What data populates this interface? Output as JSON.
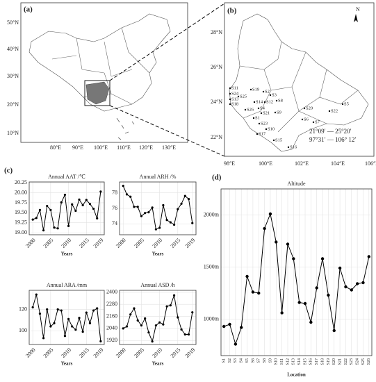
{
  "maps": {
    "a": {
      "label": "(a)",
      "lon_labels": [
        "80°E",
        "90°E",
        "100°E",
        "110°E",
        "120°E",
        "130°E"
      ],
      "lat_labels": [
        "50°N",
        "40°N",
        "30°N",
        "20°N",
        "10°N"
      ]
    },
    "b": {
      "label": "(b)",
      "lon_labels": [
        "98°E",
        "100°E",
        "102°E",
        "104°E",
        "106°E"
      ],
      "lat_labels": [
        "28°N",
        "26°N",
        "24°N",
        "22°N"
      ],
      "north": "N",
      "lat_range": "21°09′ — 25°20′",
      "lon_range": "97°31′ — 106° 12′",
      "stations": [
        "S11",
        "S24",
        "S13",
        "S18",
        "S19",
        "S2",
        "S3",
        "S12",
        "S14",
        "S4",
        "S26",
        "S8",
        "S21",
        "S9",
        "S1",
        "S23",
        "S20",
        "S6",
        "S7",
        "S22",
        "S5",
        "S10",
        "S17",
        "S15",
        "S16",
        "S25"
      ]
    }
  },
  "panel_labels": {
    "c": "(c)",
    "d": "(d)"
  },
  "chart_data": [
    {
      "type": "line",
      "title": "Annual AAT /℃",
      "xlabel": "Years",
      "color": "#000000",
      "grid": true,
      "x": [
        2000,
        2001,
        2002,
        2003,
        2004,
        2005,
        2006,
        2007,
        2008,
        2009,
        2010,
        2011,
        2012,
        2013,
        2014,
        2015,
        2016,
        2017,
        2018,
        2019
      ],
      "values": [
        19.33,
        19.37,
        19.57,
        19.06,
        19.67,
        19.57,
        19.13,
        19.11,
        19.76,
        19.95,
        19.17,
        19.71,
        19.55,
        19.83,
        19.69,
        19.82,
        19.72,
        19.6,
        19.36,
        20.03
      ],
      "xlim": [
        1999,
        2020
      ],
      "xticks": [
        2000,
        2005,
        2010,
        2015,
        2019
      ],
      "ylim": [
        18.95,
        20.27
      ],
      "yticks": [
        {
          "value": 19,
          "label": "19.00"
        },
        19.25,
        {
          "value": 19.5,
          "label": "19.50"
        },
        19.75,
        {
          "value": 20,
          "label": "20.00"
        },
        20.25
      ]
    },
    {
      "type": "line",
      "title": "Annual ARH /%",
      "xlabel": "Years",
      "color": "#000000",
      "grid": true,
      "x": [
        2000,
        2001,
        2002,
        2003,
        2004,
        2005,
        2006,
        2007,
        2008,
        2009,
        2010,
        2011,
        2012,
        2013,
        2014,
        2015,
        2016,
        2017,
        2018,
        2019
      ],
      "values": [
        78.9,
        77.8,
        77.5,
        76.2,
        76.2,
        75.0,
        75.4,
        75.5,
        76.1,
        73.3,
        73.5,
        76.4,
        74.5,
        74.2,
        73.9,
        75.9,
        76.6,
        77.6,
        77.2,
        74.1
      ],
      "xlim": [
        1999,
        2020
      ],
      "xticks": [
        2000,
        2005,
        2010,
        2015,
        2019
      ],
      "ylim": [
        72.6,
        79.4
      ],
      "yticks": [
        74,
        76,
        78
      ]
    },
    {
      "type": "line",
      "title": "Annual ARA /mm",
      "xlabel": "Years",
      "color": "#000000",
      "grid": true,
      "x": [
        2000,
        2001,
        2002,
        2003,
        2004,
        2005,
        2006,
        2007,
        2008,
        2009,
        2010,
        2011,
        2012,
        2013,
        2014,
        2015,
        2016,
        2017,
        2018,
        2019
      ],
      "values": [
        122,
        134,
        116,
        93,
        120,
        104,
        107,
        120,
        119,
        95,
        111,
        104,
        101,
        112,
        99,
        117,
        107,
        119,
        121,
        90
      ],
      "xlim": [
        1999,
        2020
      ],
      "xticks": [
        2000,
        2005,
        2010,
        2015,
        2019
      ],
      "ylim": [
        87,
        138
      ],
      "yticks": [
        100,
        120
      ]
    },
    {
      "type": "line",
      "title": "Annual ASD /h",
      "xlabel": "Years",
      "color": "#000000",
      "grid": true,
      "x": [
        2000,
        2001,
        2002,
        2003,
        2004,
        2005,
        2006,
        2007,
        2008,
        2009,
        2010,
        2011,
        2012,
        2013,
        2014,
        2015,
        2016,
        2017,
        2018,
        2019
      ],
      "values": [
        2040,
        2060,
        2180,
        2240,
        2120,
        2070,
        2140,
        2000,
        1910,
        2070,
        2100,
        2080,
        2260,
        2270,
        2370,
        2150,
        2030,
        1980,
        1980,
        2200
      ],
      "xlim": [
        1999,
        2020
      ],
      "xticks": [
        2000,
        2005,
        2010,
        2015,
        2019
      ],
      "ylim": [
        1880,
        2420
      ],
      "yticks": [
        1920,
        2040,
        2160,
        2280,
        2400
      ]
    },
    {
      "type": "line",
      "title": "Altitude",
      "xlabel": "Location",
      "color": "#000000",
      "grid": true,
      "categories": [
        "S1",
        "S2",
        "S3",
        "S4",
        "S5",
        "S6",
        "S7",
        "S8",
        "S9",
        "S10",
        "S11",
        "S12",
        "S13",
        "S14",
        "S15",
        "S16",
        "S17",
        "S18",
        "S19",
        "S20",
        "S21",
        "S22",
        "S23",
        "S24",
        "S25",
        "S26"
      ],
      "values": [
        930,
        950,
        760,
        920,
        1410,
        1260,
        1250,
        1870,
        2010,
        1740,
        1060,
        1720,
        1580,
        1160,
        1150,
        970,
        1300,
        1580,
        1230,
        890,
        1490,
        1310,
        1280,
        1340,
        1350,
        1600
      ],
      "ylim": [
        650,
        2250
      ],
      "yticks": [
        {
          "value": 1000,
          "label": "1000m"
        },
        {
          "value": 1500,
          "label": "1500m"
        },
        {
          "value": 2000,
          "label": "2000m"
        }
      ]
    }
  ]
}
